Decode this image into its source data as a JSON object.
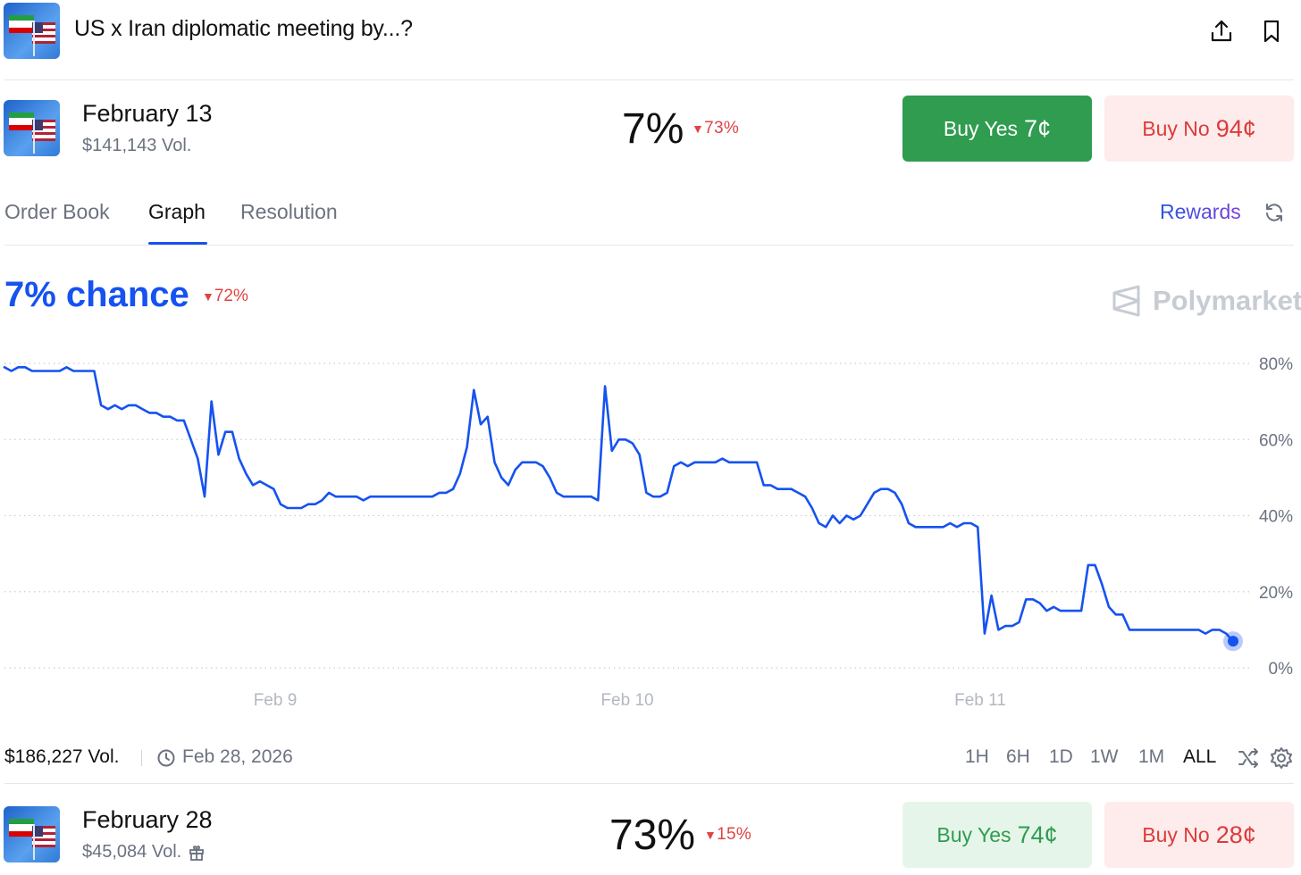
{
  "header": {
    "title": "US x Iran diplomatic meeting by...?",
    "share_icon": "share-icon",
    "bookmark_icon": "bookmark-icon"
  },
  "markets": [
    {
      "date": "February 13",
      "volume": "$141,143 Vol.",
      "percent": "7%",
      "change": "73%",
      "buy_yes_label": "Buy Yes",
      "buy_yes_price": "7¢",
      "buy_no_label": "Buy No",
      "buy_no_price": "94¢"
    },
    {
      "date": "February 28",
      "volume": "$45,084 Vol.",
      "percent": "73%",
      "change": "15%",
      "buy_yes_label": "Buy Yes",
      "buy_yes_price": "74¢",
      "buy_no_label": "Buy No",
      "buy_no_price": "28¢"
    }
  ],
  "tabs": [
    {
      "label": "Order Book"
    },
    {
      "label": "Graph"
    },
    {
      "label": "Resolution"
    }
  ],
  "active_tab": "Graph",
  "rewards_label": "Rewards",
  "chance": {
    "label": "7% chance",
    "change": "72%"
  },
  "watermark": "Polymarket",
  "footer": {
    "volume": "$186,227 Vol.",
    "end_date": "Feb 28, 2026",
    "ranges": [
      "1H",
      "6H",
      "1D",
      "1W",
      "1M",
      "ALL"
    ],
    "active_range": "ALL"
  },
  "colors": {
    "accent": "#1552f0",
    "negative": "#e04343",
    "yes": "#2f9c4f",
    "no_bg": "#fdeceb"
  },
  "chart_data": {
    "type": "line",
    "x_labels": [
      "Feb 9",
      "Feb 10",
      "Feb 11"
    ],
    "y_ticks": [
      "80%",
      "60%",
      "40%",
      "20%",
      "0%"
    ],
    "ylim": [
      0,
      80
    ],
    "grid": true,
    "series": [
      {
        "values": [
          79,
          78,
          79,
          79,
          78,
          78,
          78,
          78,
          78,
          79,
          78,
          78,
          78,
          78,
          69,
          68,
          69,
          68,
          69,
          69,
          68,
          67,
          67,
          66,
          66,
          65,
          65,
          60,
          55,
          45,
          70,
          56,
          62,
          62,
          55,
          51,
          48,
          49,
          48,
          47,
          43,
          42,
          42,
          42,
          43,
          43,
          44,
          46,
          45,
          45,
          45,
          45,
          44,
          45,
          45,
          45,
          45,
          45,
          45,
          45,
          45,
          45,
          45,
          46,
          46,
          47,
          51,
          58,
          73,
          64,
          66,
          54,
          50,
          48,
          52,
          54,
          54,
          54,
          53,
          50,
          46,
          45,
          45,
          45,
          45,
          45,
          44,
          74,
          57,
          60,
          60,
          59,
          56,
          46,
          45,
          45,
          46,
          53,
          54,
          53,
          54,
          54,
          54,
          54,
          55,
          54,
          54,
          54,
          54,
          54,
          48,
          48,
          47,
          47,
          47,
          46,
          45,
          42,
          38,
          37,
          40,
          38,
          40,
          39,
          40,
          43,
          46,
          47,
          47,
          46,
          43,
          38,
          37,
          37,
          37,
          37,
          37,
          38,
          37,
          38,
          38,
          37,
          9,
          19,
          10,
          11,
          11,
          12,
          18,
          18,
          17,
          15,
          16,
          15,
          15,
          15,
          15,
          27,
          27,
          22,
          16,
          14,
          14,
          10,
          10,
          10,
          10,
          10,
          10,
          10,
          10,
          10,
          10,
          10,
          9,
          10,
          10,
          9,
          7
        ]
      }
    ]
  }
}
